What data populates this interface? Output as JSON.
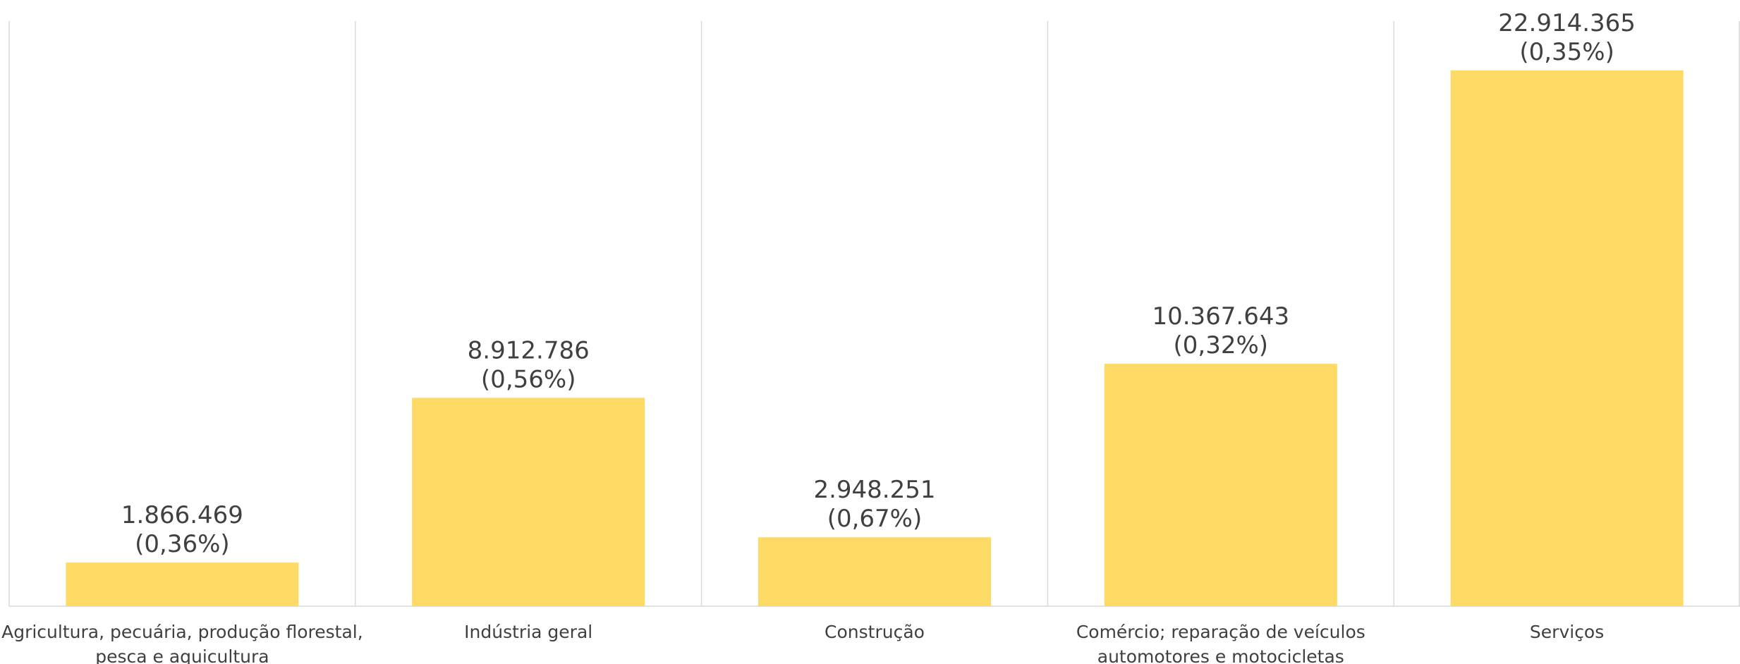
{
  "chart_data": {
    "type": "bar",
    "categories": [
      [
        "Agricultura, pecuária, produção florestal,",
        "pesca e aquicultura"
      ],
      [
        "Indústria geral"
      ],
      [
        "Construção"
      ],
      [
        "Comércio; reparação de veículos",
        "automotores e motocicletas"
      ],
      [
        "Serviços"
      ]
    ],
    "values": [
      1866469,
      8912786,
      2948251,
      10367643,
      22914365
    ],
    "value_labels": [
      "1.866.469",
      "8.912.786",
      "2.948.251",
      "10.367.643",
      "22.914.365"
    ],
    "percent_labels": [
      "(0,36%)",
      "(0,56%)",
      "(0,67%)",
      "(0,32%)",
      "(0,35%)"
    ],
    "title": "",
    "xlabel": "",
    "ylabel": "",
    "ylim": [
      0,
      24000000
    ],
    "grid": "vertical separators",
    "legend": "none",
    "colors": {
      "bar": "#FDD966",
      "grid": "#D9D9D9",
      "text": "#404040"
    }
  }
}
